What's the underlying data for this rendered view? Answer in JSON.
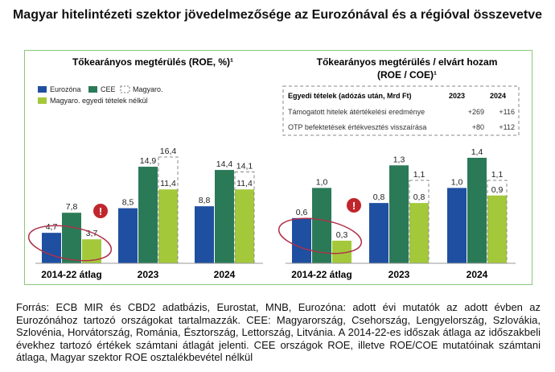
{
  "title": "Magyar hitelintézeti szektor jövedelmezősége az Eurozónával és a régióval összevetve",
  "footnote": "Forrás: ECB MIR és CBD2 adatbázis, Eurostat, MNB, Eurozóna: adott évi mutatók az adott évben az Eurozónához tartozó országokat tartalmazzák. CEE: Magyarország, Csehország, Lengyelország, Szlovákia, Szlovénia, Horvátország, Románia, Észtország, Lettország, Litvánia. A 2014-22-es időszak átlaga az időszakbeli évekhez tartozó értékek számtani átlagát jelenti. CEE országok ROE, illetve ROE/COE mutatóinak számtani átlaga, Magyar szektor ROE osztalékbevétel nélkül",
  "colors": {
    "eurozona": "#1f4fa0",
    "cee": "#2b7a57",
    "hu_excl": "#a3c93a",
    "alert": "#c0262c",
    "ellipse": "#b0304a",
    "frame": "#8cc77a"
  },
  "table": {
    "header": "Egyedi tételek (adózás után, Mrd Ft)",
    "cols": [
      "2023",
      "2024"
    ],
    "rows": [
      {
        "label": "Támogatott hitelek átértékelési eredménye",
        "v": [
          "+269",
          "+116"
        ]
      },
      {
        "label": "OTP befektetések értékvesztés visszaírása",
        "v": [
          "+80",
          "+112"
        ]
      }
    ]
  },
  "alert_icon": "!",
  "chart_data": [
    {
      "type": "bar",
      "title": "Tőkearányos megtérülés (ROE, %)¹",
      "categories": [
        "2014-22 átlag",
        "2023",
        "2024"
      ],
      "legend": [
        "Eurozóna",
        "CEE",
        "Magyaro.",
        "Magyaro. egyedi tételek nélkül"
      ],
      "legend_placement": "top-left",
      "series": [
        {
          "name": "Eurozóna",
          "values": [
            4.7,
            8.5,
            8.8
          ],
          "labels": [
            "4,7",
            "8,5",
            "8,8"
          ]
        },
        {
          "name": "CEE",
          "values": [
            7.8,
            14.9,
            14.4
          ],
          "labels": [
            "7,8",
            "14,9",
            "14,4"
          ]
        },
        {
          "name": "Magyaro.",
          "values": [
            null,
            16.4,
            14.1
          ],
          "labels": [
            "",
            "16,4",
            "14,1"
          ],
          "style": "dashed-outline"
        },
        {
          "name": "Magyaro. egyedi tételek nélkül",
          "values": [
            3.7,
            11.4,
            11.4
          ],
          "labels": [
            "3,7",
            "11,4",
            "11,4"
          ]
        }
      ]
    },
    {
      "type": "bar",
      "title": "Tőkearányos megtérülés / elvárt hozam",
      "title2": "(ROE / COE)¹",
      "categories": [
        "2014-22 átlag",
        "2023",
        "2024"
      ],
      "series": [
        {
          "name": "Eurozóna",
          "values": [
            0.6,
            0.8,
            1.0
          ],
          "labels": [
            "0,6",
            "0,8",
            "1,0"
          ]
        },
        {
          "name": "CEE",
          "values": [
            1.0,
            1.3,
            1.4
          ],
          "labels": [
            "1,0",
            "1,3",
            "1,4"
          ]
        },
        {
          "name": "Magyaro.",
          "values": [
            null,
            1.1,
            1.1
          ],
          "labels": [
            "",
            "1,1",
            "1,1"
          ],
          "style": "dashed-outline"
        },
        {
          "name": "Magyaro. egyedi tételek nélkül",
          "values": [
            0.3,
            0.8,
            0.9
          ],
          "labels": [
            "0,3",
            "0,8",
            "0,9"
          ]
        }
      ]
    }
  ]
}
